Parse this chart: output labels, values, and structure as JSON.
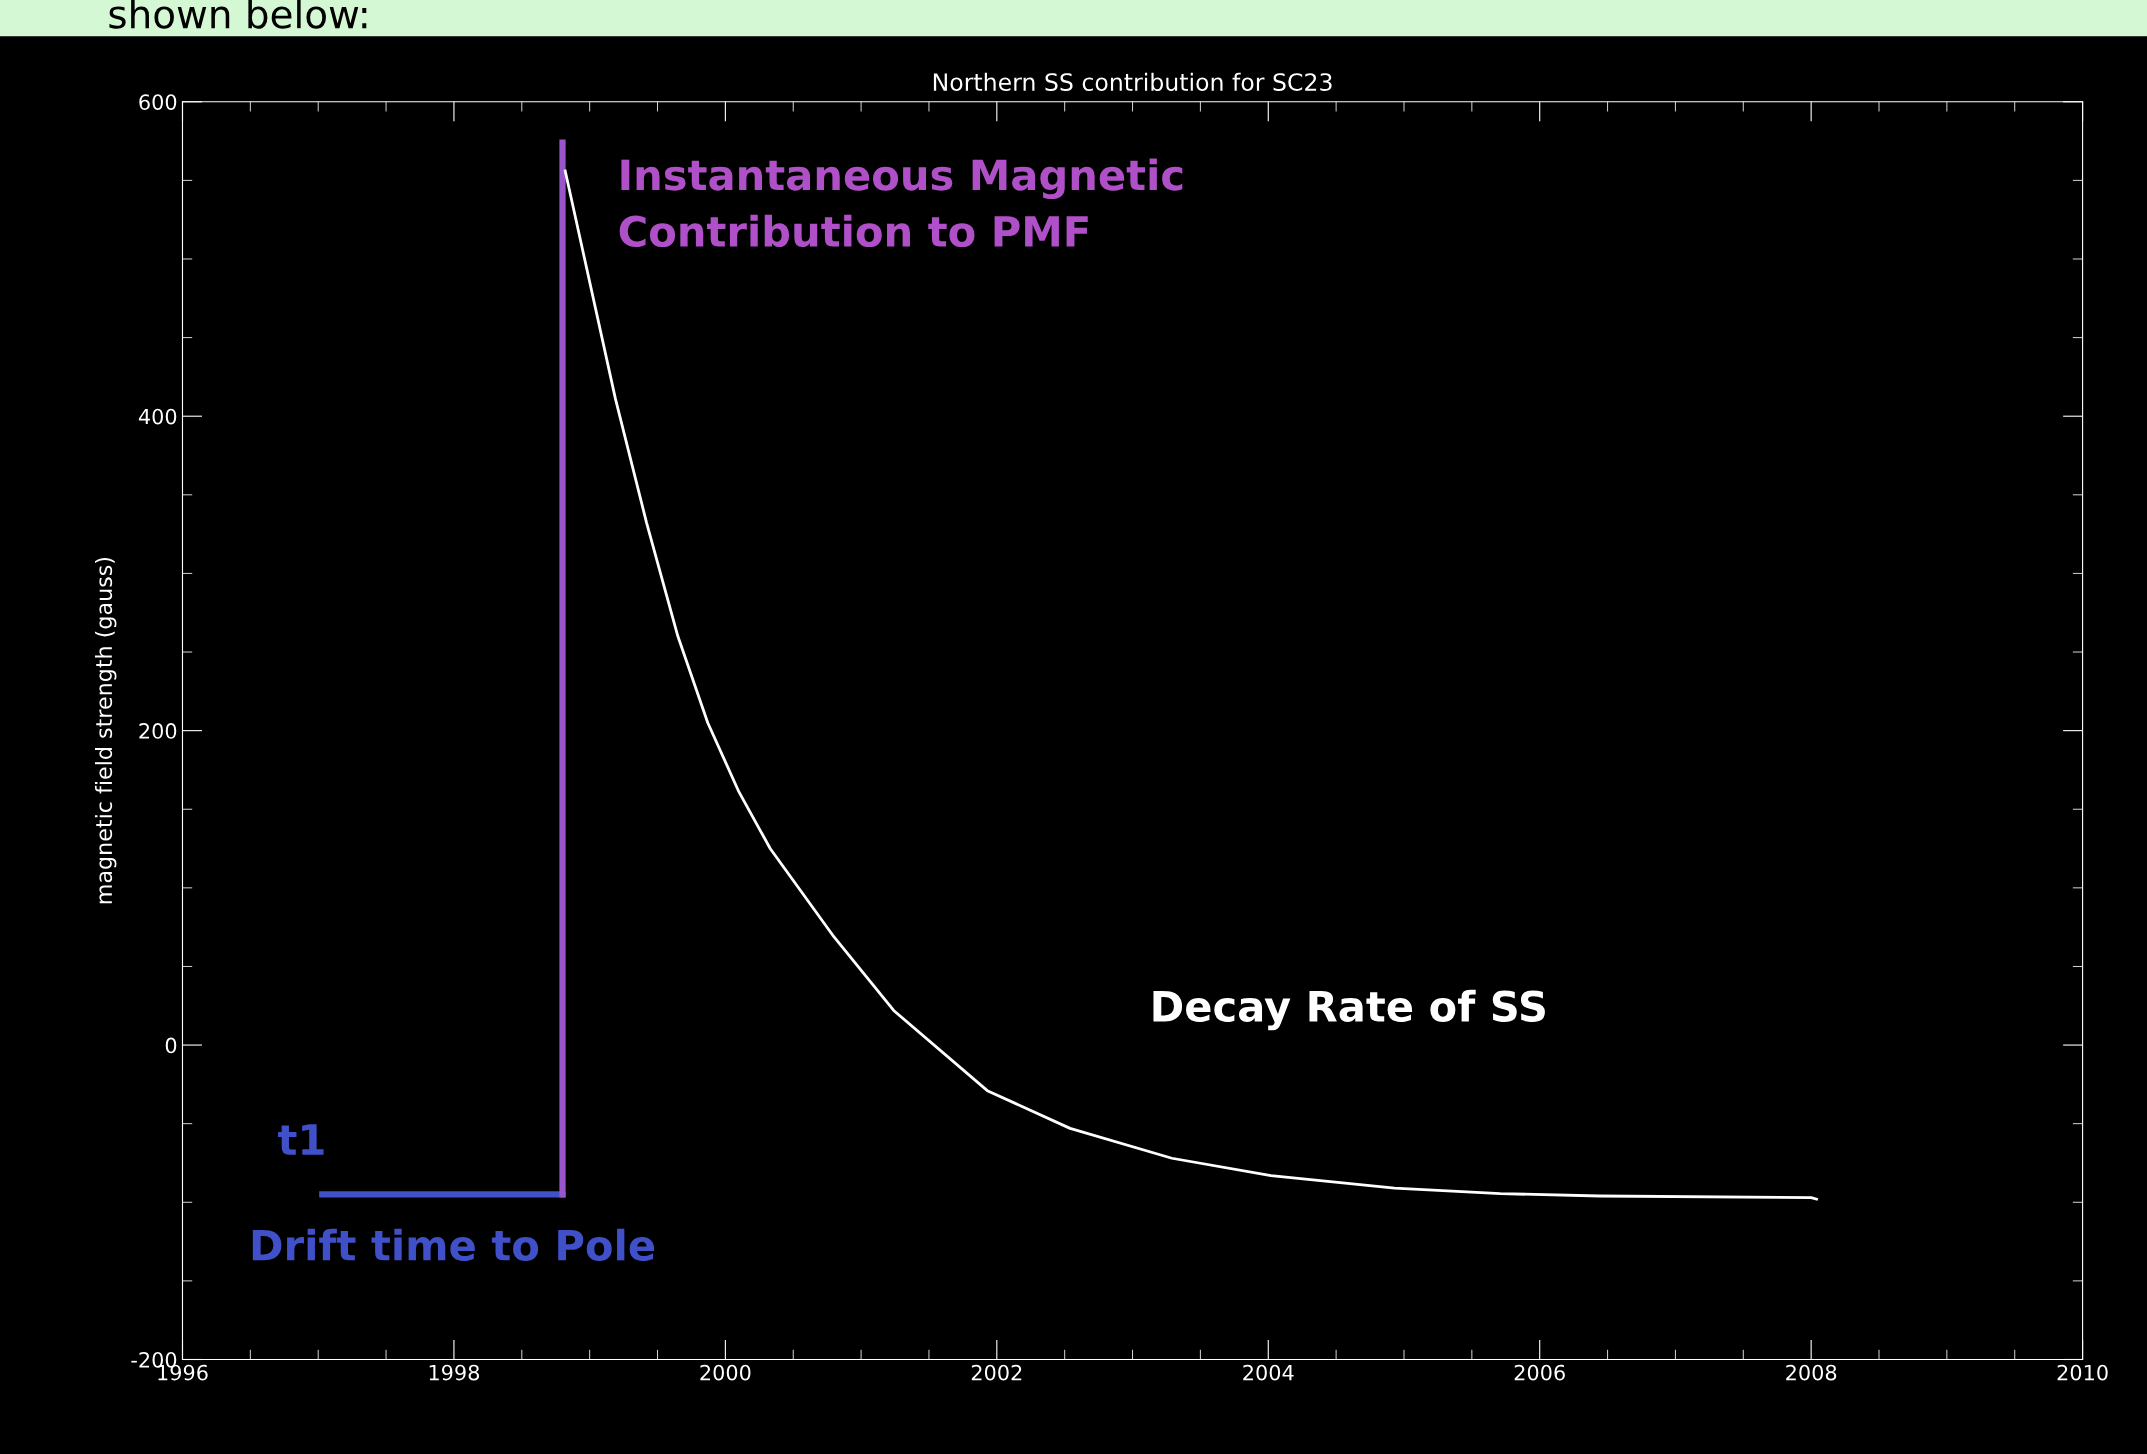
{
  "chart_data": {
    "type": "line",
    "title": "Northern SS contribution for SC23",
    "ylabel": "magnetic field strength (gauss)",
    "xlim": [
      1996,
      2010
    ],
    "xticks": [
      1996,
      1998,
      2000,
      2002,
      2004,
      2006,
      2008,
      2010
    ],
    "ylim": [
      -200,
      600
    ],
    "yticks": [
      -200,
      0,
      200,
      400,
      600
    ],
    "grid": false,
    "legend": false,
    "marker": "none",
    "line_style": "solid",
    "series": [
      {
        "color": "#4050c8",
        "x": [
          1997.03,
          1998.8
        ],
        "values": [
          -95,
          -95
        ]
      },
      {
        "color": "#9955cc",
        "x": [
          1998.8,
          1998.8
        ],
        "values": [
          -95,
          574
        ]
      },
      {
        "color": "#ffffff",
        "x": [
          1998.82,
          1999.19,
          1999.42,
          1999.65,
          1999.87,
          2000.1,
          2000.33,
          2000.79,
          2001.24,
          2001.93,
          2002.54,
          2003.29,
          2004.02,
          2004.93,
          2005.71,
          2006.44,
          2008.0,
          2008.04
        ],
        "values": [
          556,
          411,
          332,
          260,
          205,
          161,
          125,
          70,
          22,
          -29,
          -53,
          -72,
          -83,
          -91,
          -94.5,
          -96,
          -97,
          -98
        ]
      }
    ],
    "annotations": [
      "shown below:",
      "Instantaneous Magnetic\nContribution to PMF",
      "Decay Rate of SS",
      "t1",
      "Drift time to Pole"
    ]
  }
}
